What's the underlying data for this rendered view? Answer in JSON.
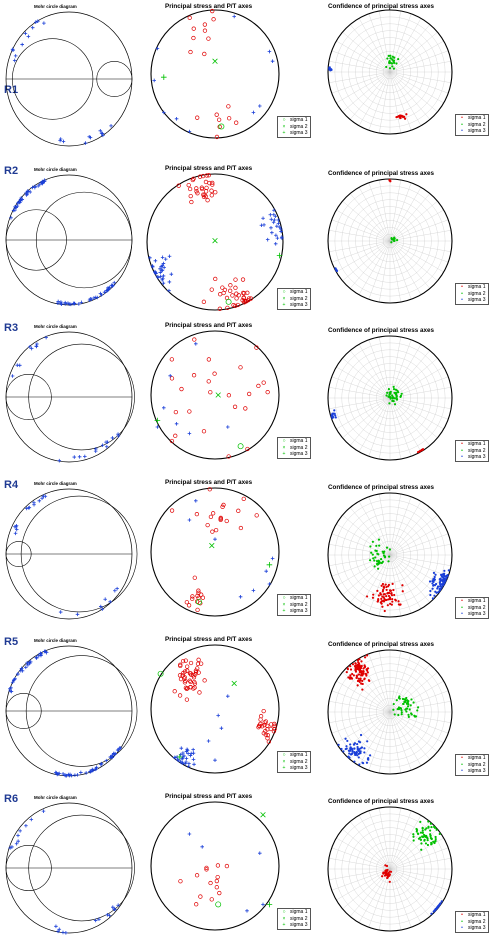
{
  "figure": {
    "panel_titles": {
      "mohr": "Mohr circle diagram",
      "principal": "Principal stress and P/T axes",
      "confidence": "Confidence of principal stress axes"
    },
    "legend": [
      "sigma 1",
      "sigma 2",
      "sigma 3"
    ],
    "colors": {
      "sigma1": "#e00000",
      "sigma2": "#00c000",
      "sigma3": "#1a3fd8",
      "p_axis": "#e00000",
      "t_axis": "#1a3fd8",
      "outline": "#000000",
      "grid": "#c8c8c8"
    }
  },
  "rows": [
    {
      "label": "R1"
    },
    {
      "label": "R2"
    },
    {
      "label": "R3"
    },
    {
      "label": "R4"
    },
    {
      "label": "R5"
    },
    {
      "label": "R6"
    }
  ]
}
